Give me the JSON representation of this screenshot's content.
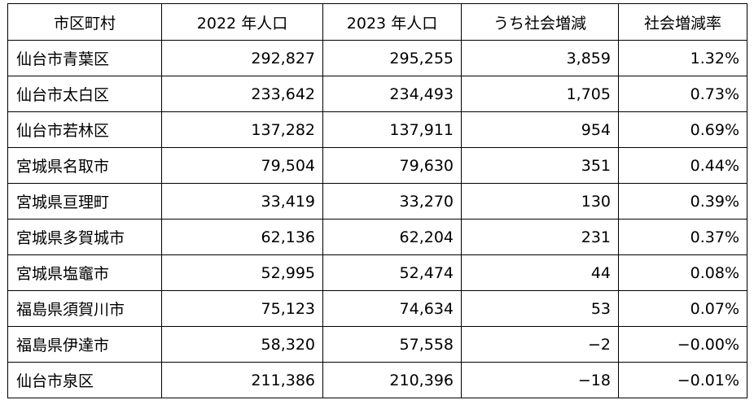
{
  "table": {
    "headers": [
      "市区町村",
      "2022 年人口",
      "2023 年人口",
      "うち社会増減",
      "社会増減率"
    ],
    "rows": [
      [
        "仙台市青葉区",
        "292,827",
        "295,255",
        "3,859",
        "1.32%"
      ],
      [
        "仙台市太白区",
        "233,642",
        "234,493",
        "1,705",
        "0.73%"
      ],
      [
        "仙台市若林区",
        "137,282",
        "137,911",
        "954",
        "0.69%"
      ],
      [
        "宮城県名取市",
        "79,504",
        "79,630",
        "351",
        "0.44%"
      ],
      [
        "宮城県亘理町",
        "33,419",
        "33,270",
        "130",
        "0.39%"
      ],
      [
        "宮城県多賀城市",
        "62,136",
        "62,204",
        "231",
        "0.37%"
      ],
      [
        "宮城県塩竈市",
        "52,995",
        "52,474",
        "44",
        "0.08%"
      ],
      [
        "福島県須賀川市",
        "75,123",
        "74,634",
        "53",
        "0.07%"
      ],
      [
        "福島県伊達市",
        "58,320",
        "57,558",
        "−2",
        "−0.00%"
      ],
      [
        "仙台市泉区",
        "211,386",
        "210,396",
        "−18",
        "−0.01%"
      ]
    ]
  }
}
